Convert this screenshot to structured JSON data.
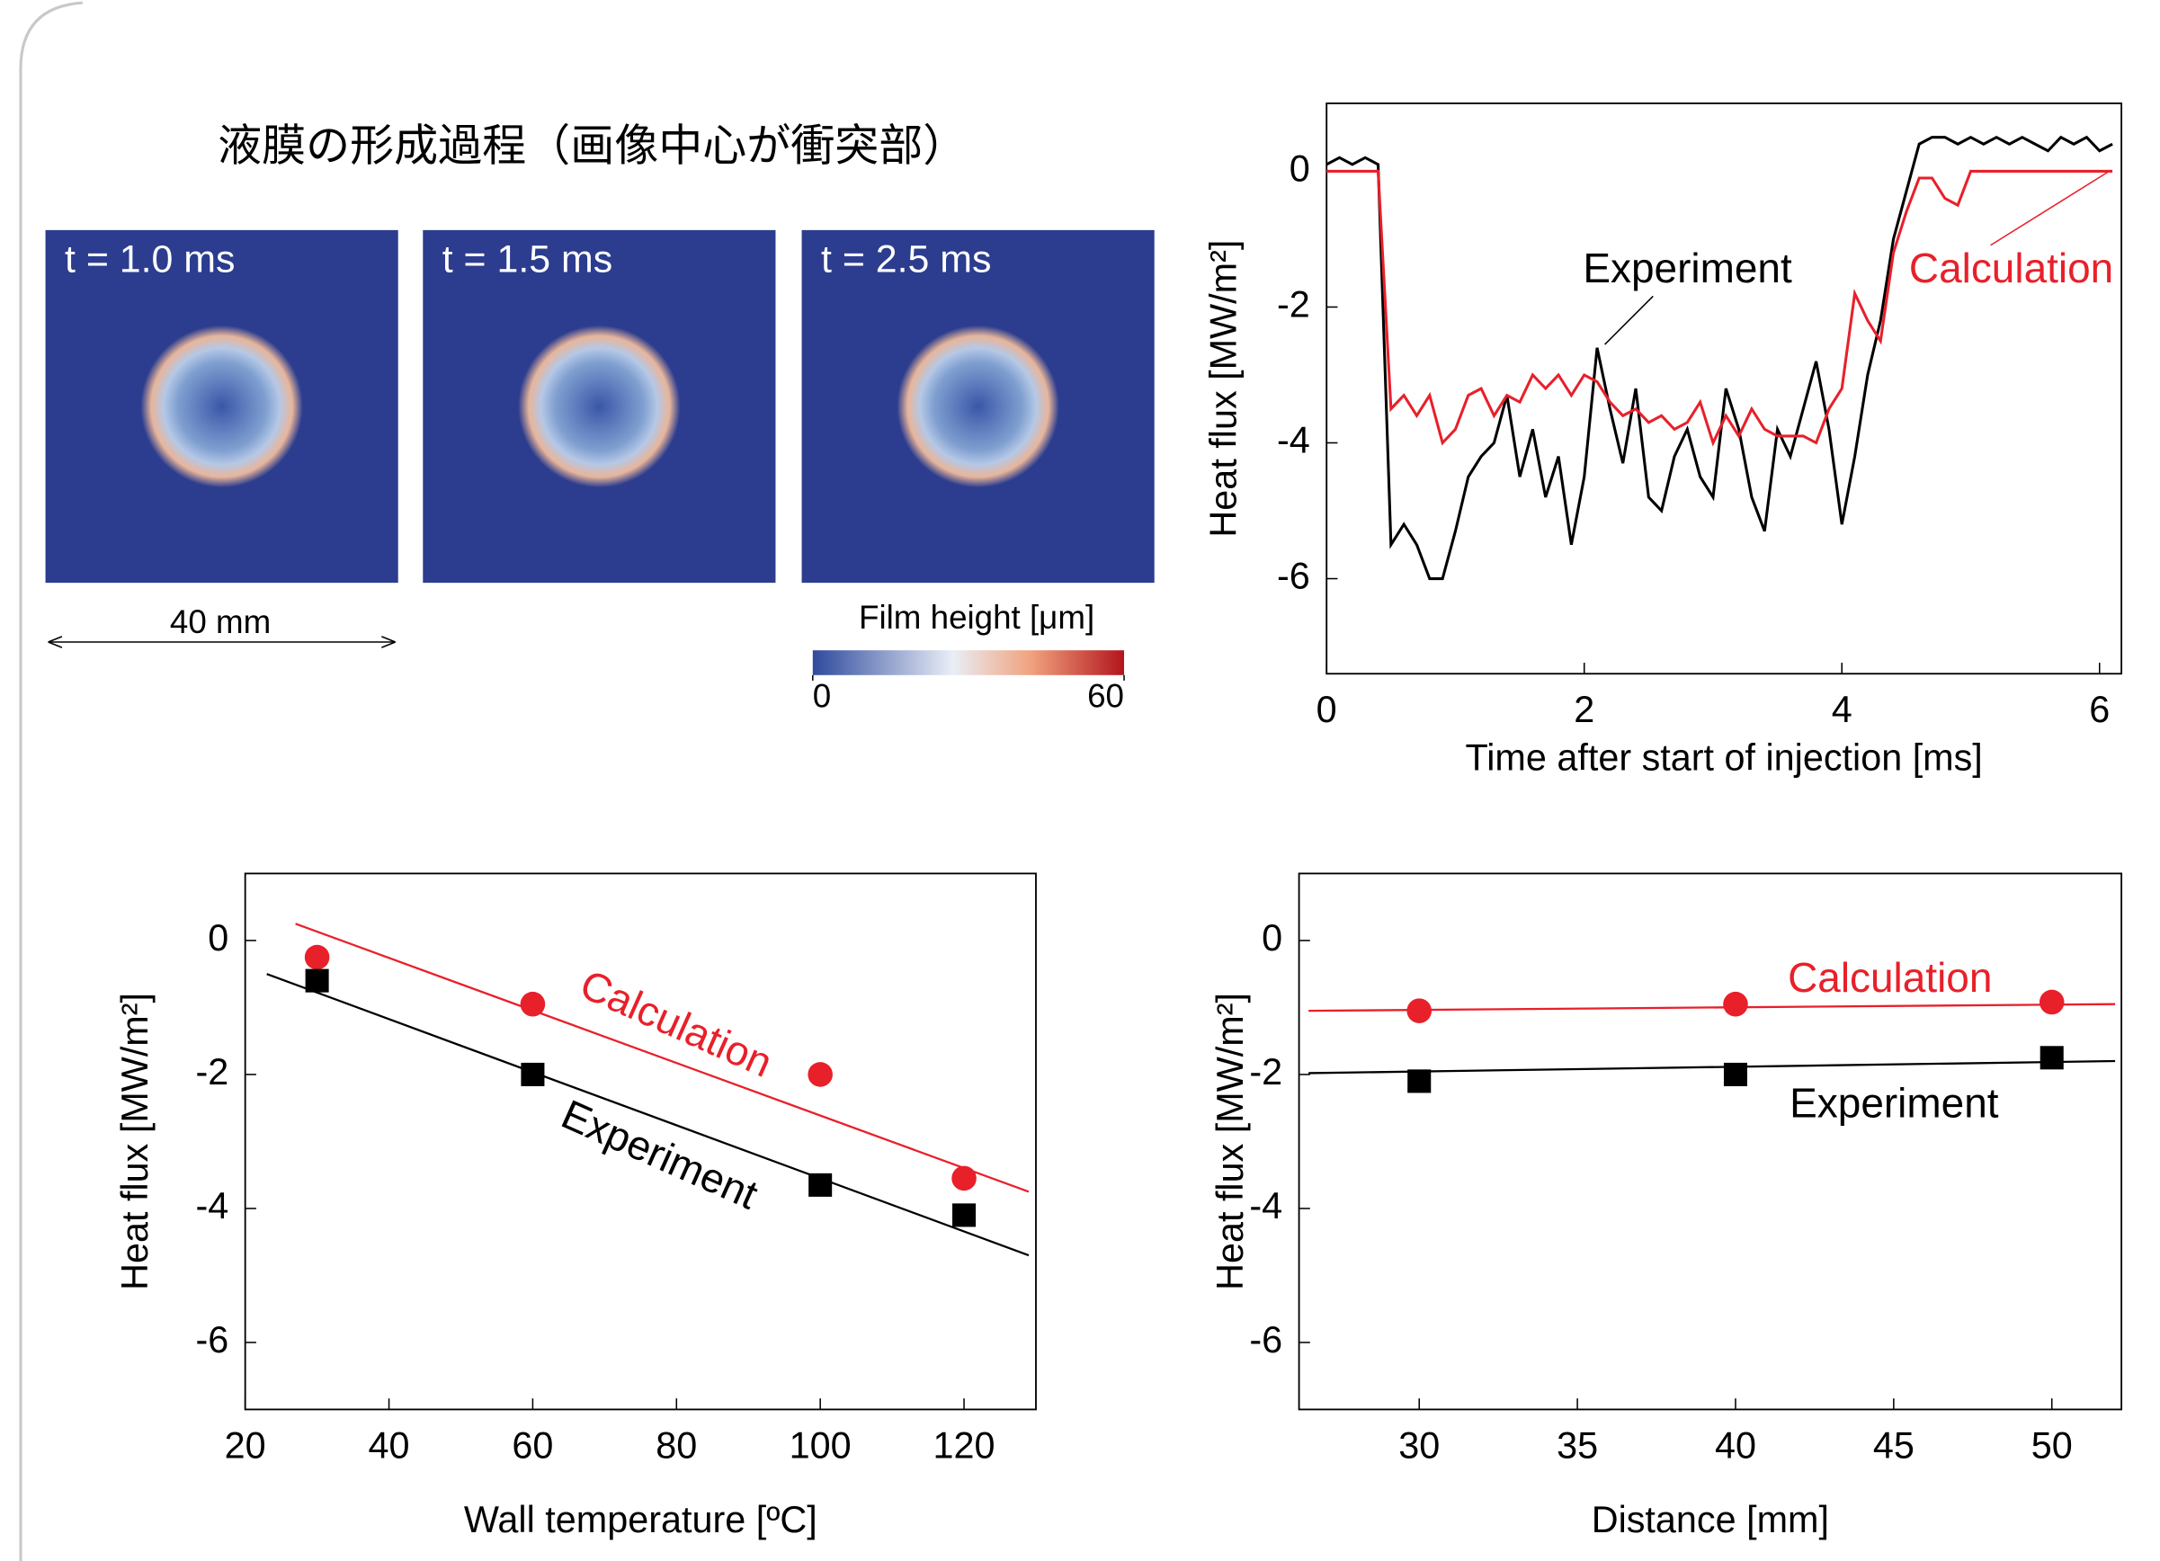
{
  "film_panel": {
    "title": "液膜の形成過程（画像中心が衝突部）",
    "frames": [
      "t = 1.0 ms",
      "t = 1.5 ms",
      "t = 2.5 ms"
    ],
    "scale_label": "40 mm",
    "colorbar": {
      "label": "Film height [μm]",
      "clim": [
        0,
        60
      ],
      "ticks": [
        0,
        60
      ]
    }
  },
  "chart_data": [
    {
      "type": "line",
      "xlabel": "Time after start of injection [ms]",
      "ylabel": "Heat flux [MW/m²]",
      "xlim": [
        0,
        6.17
      ],
      "ylim": [
        -7.4,
        1
      ],
      "xticks": [
        0,
        2,
        4,
        6
      ],
      "yticks": [
        -6,
        -4,
        -2,
        0
      ],
      "x": [
        0,
        0.1,
        0.2,
        0.3,
        0.4,
        0.5,
        0.6,
        0.7,
        0.8,
        0.9,
        1.0,
        1.1,
        1.2,
        1.3,
        1.4,
        1.5,
        1.6,
        1.7,
        1.8,
        1.9,
        2.0,
        2.1,
        2.2,
        2.3,
        2.4,
        2.5,
        2.6,
        2.7,
        2.8,
        2.9,
        3.0,
        3.1,
        3.2,
        3.3,
        3.4,
        3.5,
        3.6,
        3.7,
        3.8,
        3.9,
        4.0,
        4.1,
        4.2,
        4.3,
        4.4,
        4.5,
        4.6,
        4.7,
        4.8,
        4.9,
        5.0,
        5.1,
        5.2,
        5.3,
        5.4,
        5.5,
        5.6,
        5.7,
        5.8,
        5.9,
        6.0,
        6.1
      ],
      "series": [
        {
          "name": "Experiment",
          "color": "#000000",
          "values": [
            0.1,
            0.2,
            0.1,
            0.2,
            0.1,
            -5.5,
            -5.2,
            -5.5,
            -6.0,
            -6.0,
            -5.3,
            -4.5,
            -4.2,
            -4.0,
            -3.3,
            -4.5,
            -3.8,
            -4.8,
            -4.2,
            -5.5,
            -4.5,
            -2.6,
            -3.5,
            -4.3,
            -3.2,
            -4.8,
            -5.0,
            -4.2,
            -3.8,
            -4.5,
            -4.8,
            -3.2,
            -3.8,
            -4.8,
            -5.3,
            -3.8,
            -4.2,
            -3.5,
            -2.8,
            -3.8,
            -5.2,
            -4.2,
            -3.0,
            -2.2,
            -1.0,
            -0.3,
            0.4,
            0.5,
            0.5,
            0.4,
            0.5,
            0.4,
            0.5,
            0.4,
            0.5,
            0.4,
            0.3,
            0.5,
            0.4,
            0.5,
            0.3,
            0.4
          ]
        },
        {
          "name": "Calculation",
          "color": "#e8202a",
          "values": [
            0,
            0,
            0,
            0,
            0,
            -3.5,
            -3.3,
            -3.6,
            -3.3,
            -4.0,
            -3.8,
            -3.3,
            -3.2,
            -3.6,
            -3.3,
            -3.4,
            -3.0,
            -3.2,
            -3.0,
            -3.3,
            -3.0,
            -3.1,
            -3.4,
            -3.6,
            -3.5,
            -3.7,
            -3.6,
            -3.8,
            -3.7,
            -3.4,
            -4.0,
            -3.6,
            -3.9,
            -3.5,
            -3.8,
            -3.9,
            -3.9,
            -3.9,
            -4.0,
            -3.5,
            -3.2,
            -1.8,
            -2.2,
            -2.5,
            -1.2,
            -0.6,
            -0.1,
            -0.1,
            -0.4,
            -0.5,
            0,
            0,
            0,
            0,
            0,
            0,
            0,
            0,
            0,
            0,
            0,
            0
          ]
        }
      ]
    },
    {
      "type": "scatter",
      "xlabel": "Wall temperature [ºC]",
      "ylabel": "Heat flux [MW/m²]",
      "xlim": [
        20,
        130
      ],
      "ylim": [
        -7,
        1
      ],
      "xticks": [
        20,
        40,
        60,
        80,
        100,
        120
      ],
      "yticks": [
        -6,
        -4,
        -2,
        0
      ],
      "x": [
        30,
        60,
        100,
        120
      ],
      "series": [
        {
          "name": "Calculation",
          "color": "#e8202a",
          "marker": "circle",
          "values": [
            -0.25,
            -0.95,
            -2.0,
            -3.55
          ],
          "fit": {
            "x": [
              27,
              129
            ],
            "values": [
              0.25,
              -3.75
            ]
          }
        },
        {
          "name": "Experiment",
          "color": "#000000",
          "marker": "square",
          "values": [
            -0.6,
            -2.0,
            -3.65,
            -4.1
          ],
          "fit": {
            "x": [
              23,
              129
            ],
            "values": [
              -0.5,
              -4.7
            ]
          }
        }
      ]
    },
    {
      "type": "scatter",
      "xlabel": "Distance [mm]",
      "ylabel": "Heat flux [MW/m²]",
      "xlim": [
        26.2,
        52.2
      ],
      "ylim": [
        -7,
        1
      ],
      "xticks": [
        30,
        35,
        40,
        45,
        50
      ],
      "yticks": [
        -6,
        -4,
        -2,
        0
      ],
      "x": [
        30,
        40,
        50
      ],
      "series": [
        {
          "name": "Calculation",
          "color": "#e8202a",
          "marker": "circle",
          "values": [
            -1.05,
            -0.95,
            -0.92
          ],
          "fit": {
            "x": [
              26.5,
              52
            ],
            "values": [
              -1.05,
              -0.95
            ]
          }
        },
        {
          "name": "Experiment",
          "color": "#000000",
          "marker": "square",
          "values": [
            -2.1,
            -2.0,
            -1.75
          ],
          "fit": {
            "x": [
              26.5,
              52
            ],
            "values": [
              -1.98,
              -1.8
            ]
          }
        }
      ]
    }
  ]
}
